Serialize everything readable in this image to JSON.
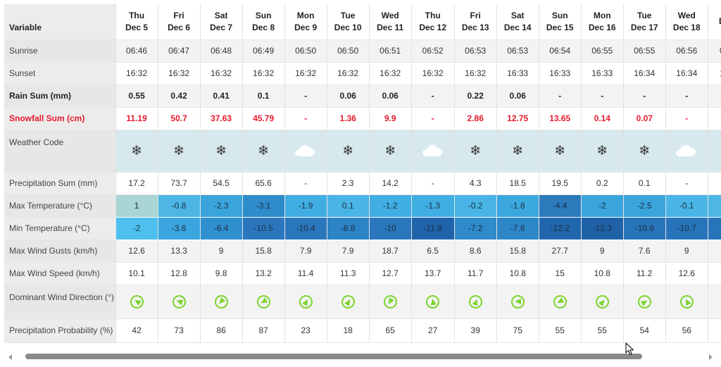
{
  "header": {
    "variable_label": "Variable",
    "days": [
      {
        "dow": "Thu",
        "date": "Dec 5"
      },
      {
        "dow": "Fri",
        "date": "Dec 6"
      },
      {
        "dow": "Sat",
        "date": "Dec 7"
      },
      {
        "dow": "Sun",
        "date": "Dec 8"
      },
      {
        "dow": "Mon",
        "date": "Dec 9"
      },
      {
        "dow": "Tue",
        "date": "Dec 10"
      },
      {
        "dow": "Wed",
        "date": "Dec 11"
      },
      {
        "dow": "Thu",
        "date": "Dec 12"
      },
      {
        "dow": "Fri",
        "date": "Dec 13"
      },
      {
        "dow": "Sat",
        "date": "Dec 14"
      },
      {
        "dow": "Sun",
        "date": "Dec 15"
      },
      {
        "dow": "Mon",
        "date": "Dec 16"
      },
      {
        "dow": "Tue",
        "date": "Dec 17"
      },
      {
        "dow": "Wed",
        "date": "Dec 18"
      },
      {
        "dow": "D",
        "date": ""
      }
    ]
  },
  "rows": [
    {
      "label": "Sunrise",
      "values": [
        "06:46",
        "06:47",
        "06:48",
        "06:49",
        "06:50",
        "06:50",
        "06:51",
        "06:52",
        "06:53",
        "06:53",
        "06:54",
        "06:55",
        "06:55",
        "06:56",
        "0"
      ]
    },
    {
      "label": "Sunset",
      "values": [
        "16:32",
        "16:32",
        "16:32",
        "16:32",
        "16:32",
        "16:32",
        "16:32",
        "16:32",
        "16:32",
        "16:33",
        "16:33",
        "16:33",
        "16:34",
        "16:34",
        "1"
      ]
    },
    {
      "label": "Rain Sum (mm)",
      "values": [
        "0.55",
        "0.42",
        "0.41",
        "0.1",
        "-",
        "0.06",
        "0.06",
        "-",
        "0.22",
        "0.06",
        "-",
        "-",
        "-",
        "-",
        "-"
      ]
    },
    {
      "label": "Snowfall Sum (cm)",
      "values": [
        "11.19",
        "50.7",
        "37.63",
        "45.79",
        "-",
        "1.36",
        "9.9",
        "-",
        "2.86",
        "12.75",
        "13.65",
        "0.14",
        "0.07",
        "-",
        "-"
      ]
    },
    {
      "label": "Weather Code",
      "icons": [
        "snow",
        "snow",
        "snow",
        "snow",
        "cloud",
        "snow",
        "snow",
        "cloud",
        "snow",
        "snow",
        "snow",
        "snow",
        "snow",
        "cloud",
        ""
      ]
    },
    {
      "label": "Precipitation Sum (mm)",
      "values": [
        "17.2",
        "73.7",
        "54.5",
        "65.6",
        "-",
        "2.3",
        "14.2",
        "-",
        "4.3",
        "18.5",
        "19.5",
        "0.2",
        "0.1",
        "-",
        ""
      ]
    },
    {
      "label": "Max Temperature (°C)",
      "values": [
        "1",
        "-0.8",
        "-2.3",
        "-3.1",
        "-1.9",
        "0.1",
        "-1.2",
        "-1.3",
        "-0.2",
        "-1.8",
        "-4.4",
        "-2",
        "-2.5",
        "-0.1",
        ""
      ],
      "colors": [
        "#a9d5d5",
        "#4db6e5",
        "#3aa4dc",
        "#2f8ccb",
        "#41aee3",
        "#48b5e6",
        "#41aee3",
        "#41aee3",
        "#48b5e6",
        "#3ba8df",
        "#2b7bbd",
        "#3aa4dc",
        "#3aa4dc",
        "#48b5e6",
        "#4db6e5"
      ]
    },
    {
      "label": "Min Temperature (°C)",
      "values": [
        "-2",
        "-3.6",
        "-6.4",
        "-10.5",
        "-10.4",
        "-8.8",
        "-10",
        "-11.8",
        "-7.2",
        "-7.6",
        "-12.2",
        "-12.3",
        "-10.6",
        "-10.7",
        ""
      ],
      "colors": [
        "#4fc0ee",
        "#3aa5de",
        "#2f8fcf",
        "#2a77bd",
        "#2a77bd",
        "#2c83c6",
        "#2a77bd",
        "#1f63aa",
        "#2e8acb",
        "#2d86c8",
        "#2066ac",
        "#1f62a8",
        "#2874bb",
        "#2874bb",
        "#2874bb"
      ]
    },
    {
      "label": "Max Wind Gusts (km/h)",
      "values": [
        "12.6",
        "13.3",
        "9",
        "15.8",
        "7.9",
        "7.9",
        "18.7",
        "6.5",
        "8.6",
        "15.8",
        "27.7",
        "9",
        "7.6",
        "9",
        ""
      ]
    },
    {
      "label": "Max Wind Speed (km/h)",
      "values": [
        "10.1",
        "12.8",
        "9.8",
        "13.2",
        "11.4",
        "11.3",
        "12.7",
        "13.7",
        "11.7",
        "10.8",
        "15",
        "10.8",
        "11.2",
        "12.6",
        ""
      ]
    },
    {
      "label": "Dominant Wind Direction (°)",
      "directions": [
        300,
        290,
        220,
        240,
        30,
        30,
        210,
        350,
        20,
        270,
        240,
        40,
        60,
        330,
        0
      ]
    },
    {
      "label": "Precipitation Probability (%)",
      "values": [
        "42",
        "73",
        "86",
        "87",
        "23",
        "18",
        "65",
        "27",
        "39",
        "75",
        "55",
        "55",
        "54",
        "56",
        ""
      ]
    }
  ],
  "icons": {
    "snow_glyph": "❄",
    "weather_types": [
      "snowflake-icon",
      "cloud-icon"
    ],
    "wind": "wind-direction-arrow-icon"
  },
  "colors": {
    "snow_text": "#e8192c",
    "wind_green": "#7cd42c",
    "weather_row_bg": "#d8e9ee"
  }
}
